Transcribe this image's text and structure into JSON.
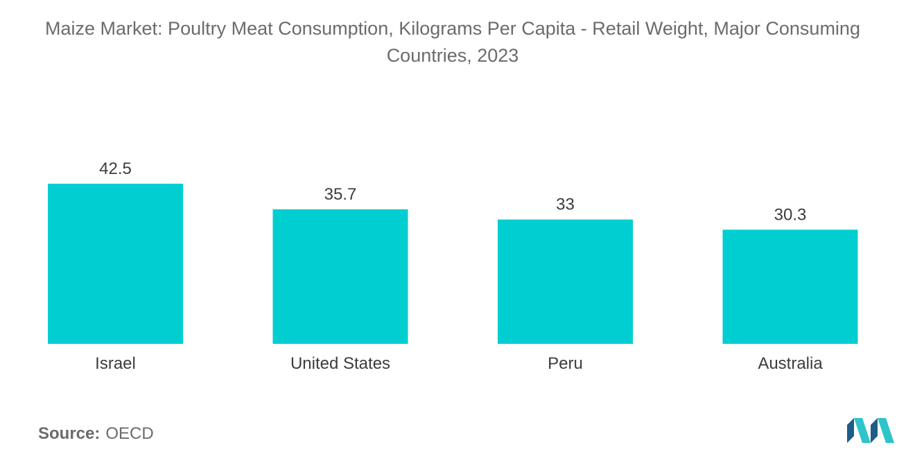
{
  "title": "Maize Market: Poultry Meat Consumption, Kilograms Per Capita - Retail Weight, Major Consuming Countries, 2023",
  "source": {
    "label": "Source:",
    "value": "OECD"
  },
  "colors": {
    "bar": "#00CED1",
    "logo_dark": "#1f5c8a",
    "logo_light": "#2ec4c9"
  },
  "chart_data": {
    "type": "bar",
    "title": "Maize Market: Poultry Meat Consumption, Kilograms Per Capita - Retail Weight, Major Consuming Countries, 2023",
    "categories": [
      "Israel",
      "United States",
      "Peru",
      "Australia"
    ],
    "values": [
      42.5,
      35.7,
      33,
      30.3
    ],
    "value_labels": [
      "42.5",
      "35.7",
      "33",
      "30.3"
    ],
    "xlabel": "",
    "ylabel": "",
    "ylim": [
      0,
      42.5
    ],
    "grid": false,
    "legend": "none"
  }
}
